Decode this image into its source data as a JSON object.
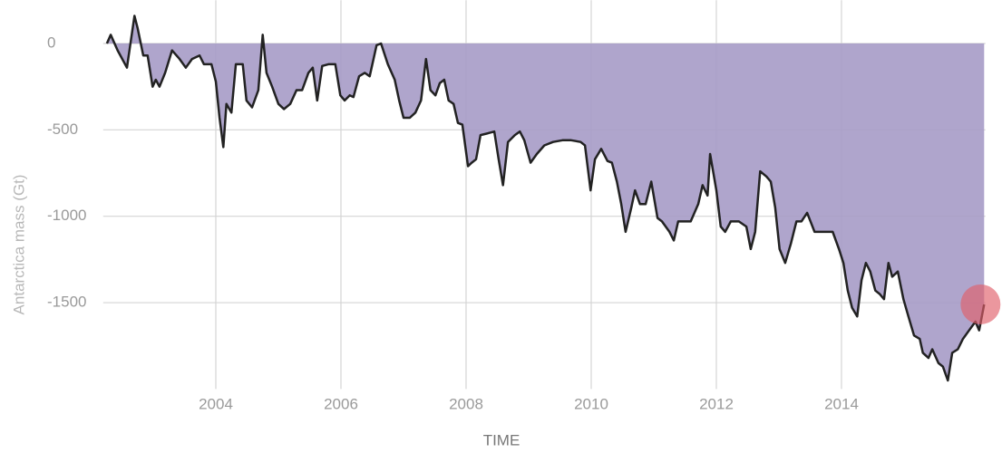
{
  "chart_data": {
    "type": "area",
    "y_label": "Antarctica mass (Gt)",
    "x_label": "TIME",
    "x": [
      2002.26,
      2002.32,
      2002.43,
      2002.58,
      2002.7,
      2002.75,
      2002.84,
      2002.91,
      2002.99,
      2003.04,
      2003.1,
      2003.19,
      2003.3,
      2003.42,
      2003.52,
      2003.62,
      2003.74,
      2003.81,
      2003.93,
      2004.0,
      2004.06,
      2004.12,
      2004.17,
      2004.25,
      2004.32,
      2004.43,
      2004.49,
      2004.58,
      2004.68,
      2004.75,
      2004.81,
      2004.9,
      2005.0,
      2005.09,
      2005.19,
      2005.29,
      2005.38,
      2005.48,
      2005.55,
      2005.62,
      2005.7,
      2005.8,
      2005.91,
      2005.99,
      2006.06,
      2006.14,
      2006.2,
      2006.29,
      2006.38,
      2006.46,
      2006.57,
      2006.64,
      2006.75,
      2006.86,
      2006.93,
      2007.0,
      2007.1,
      2007.19,
      2007.28,
      2007.36,
      2007.43,
      2007.51,
      2007.58,
      2007.65,
      2007.72,
      2007.8,
      2007.87,
      2007.94,
      2008.03,
      2008.09,
      2008.16,
      2008.23,
      2008.35,
      2008.45,
      2008.52,
      2008.59,
      2008.67,
      2008.78,
      2008.86,
      2008.93,
      2009.03,
      2009.13,
      2009.25,
      2009.39,
      2009.54,
      2009.68,
      2009.83,
      2009.9,
      2009.99,
      2010.06,
      2010.16,
      2010.26,
      2010.33,
      2010.41,
      2010.48,
      2010.55,
      2010.64,
      2010.7,
      2010.78,
      2010.87,
      2010.96,
      2011.06,
      2011.13,
      2011.25,
      2011.32,
      2011.39,
      2011.51,
      2011.59,
      2011.71,
      2011.78,
      2011.86,
      2011.9,
      2012.0,
      2012.07,
      2012.14,
      2012.23,
      2012.36,
      2012.48,
      2012.55,
      2012.62,
      2012.7,
      2012.8,
      2012.87,
      2012.94,
      2013.01,
      2013.1,
      2013.19,
      2013.28,
      2013.36,
      2013.45,
      2013.57,
      2013.67,
      2013.77,
      2013.86,
      2013.96,
      2014.03,
      2014.1,
      2014.17,
      2014.25,
      2014.32,
      2014.39,
      2014.46,
      2014.54,
      2014.61,
      2014.68,
      2014.75,
      2014.81,
      2014.9,
      2014.99,
      2015.07,
      2015.16,
      2015.25,
      2015.3,
      2015.39,
      2015.45,
      2015.55,
      2015.62,
      2015.7,
      2015.77,
      2015.86,
      2015.94,
      2016.06,
      2016.14,
      2016.2,
      2016.28
    ],
    "values": [
      0,
      50,
      -40,
      -140,
      160,
      90,
      -70,
      -70,
      -250,
      -210,
      -250,
      -170,
      -40,
      -90,
      -140,
      -90,
      -70,
      -120,
      -120,
      -220,
      -430,
      -600,
      -350,
      -400,
      -120,
      -120,
      -330,
      -370,
      -270,
      50,
      -170,
      -250,
      -350,
      -380,
      -350,
      -270,
      -270,
      -170,
      -140,
      -330,
      -130,
      -120,
      -120,
      -300,
      -330,
      -300,
      -310,
      -190,
      -170,
      -190,
      -10,
      0,
      -120,
      -210,
      -330,
      -430,
      -430,
      -400,
      -330,
      -90,
      -270,
      -300,
      -230,
      -210,
      -330,
      -350,
      -460,
      -470,
      -710,
      -690,
      -670,
      -530,
      -520,
      -510,
      -670,
      -820,
      -570,
      -530,
      -510,
      -560,
      -690,
      -640,
      -590,
      -570,
      -560,
      -560,
      -570,
      -590,
      -850,
      -670,
      -610,
      -680,
      -690,
      -800,
      -930,
      -1090,
      -950,
      -850,
      -930,
      -930,
      -800,
      -1010,
      -1030,
      -1090,
      -1140,
      -1030,
      -1030,
      -1030,
      -930,
      -820,
      -880,
      -640,
      -850,
      -1060,
      -1090,
      -1030,
      -1030,
      -1060,
      -1190,
      -1090,
      -740,
      -770,
      -800,
      -950,
      -1190,
      -1270,
      -1160,
      -1030,
      -1030,
      -980,
      -1090,
      -1090,
      -1090,
      -1090,
      -1190,
      -1270,
      -1430,
      -1530,
      -1580,
      -1370,
      -1270,
      -1320,
      -1430,
      -1450,
      -1480,
      -1270,
      -1350,
      -1320,
      -1480,
      -1580,
      -1690,
      -1710,
      -1790,
      -1820,
      -1770,
      -1850,
      -1870,
      -1950,
      -1790,
      -1770,
      -1710,
      -1650,
      -1610,
      -1660,
      -1510
    ],
    "color": "#a69bc6",
    "line_color": "#222222",
    "highlight_color": "#e0606a",
    "xlim": [
      2002.2,
      2016.3
    ],
    "xticks": [
      2004,
      2006,
      2008,
      2010,
      2012,
      2014
    ],
    "ylim": [
      -2000,
      250
    ],
    "yticks": [
      0,
      -500,
      -1000,
      -1500
    ],
    "grid": true
  }
}
